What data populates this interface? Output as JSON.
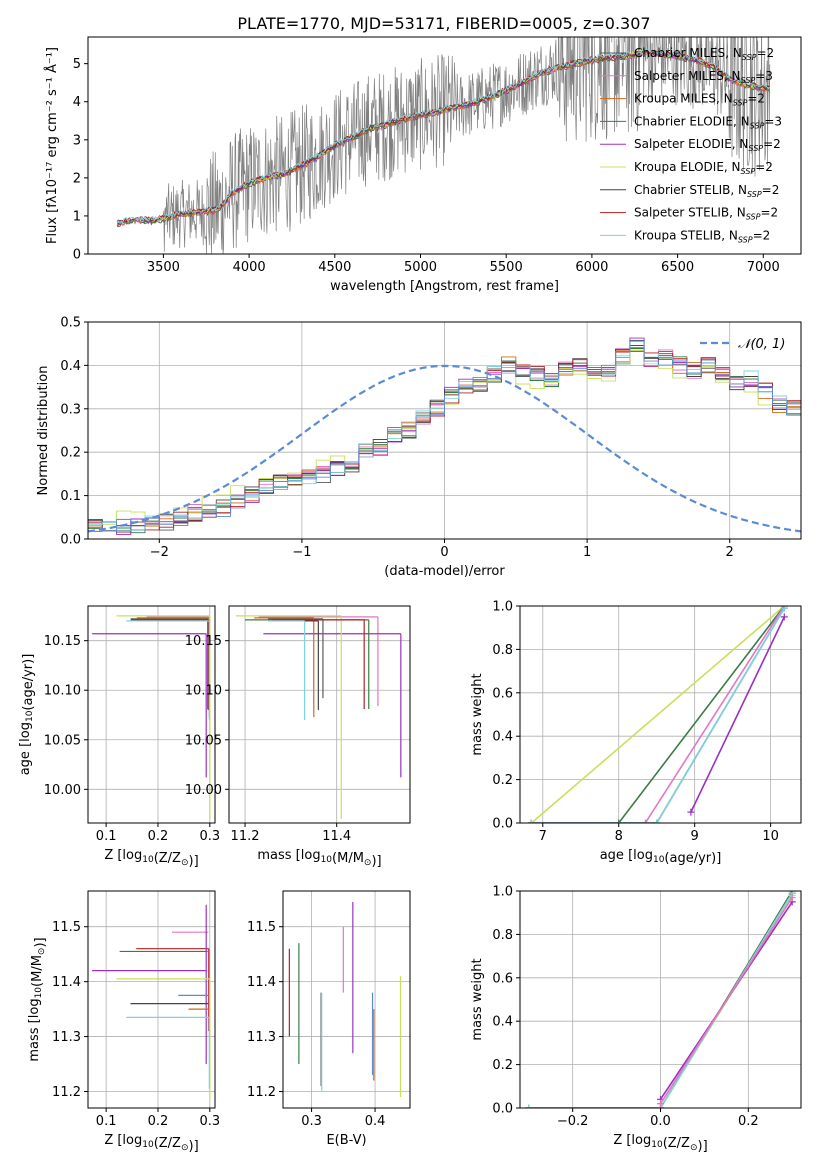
{
  "figure": {
    "title": "PLATE=1770, MJD=53171, FIBERID=0005, z=0.307",
    "colors": {
      "chabrier_miles": "#5b5b5b",
      "salpeter_miles": "#e377c2",
      "kroupa_miles": "#d2691e",
      "chabrier_elodie": "#3a7d44",
      "salpeter_elodie": "#9b30c0",
      "kroupa_elodie": "#c8e05a",
      "chabrier_stelib": "#444444",
      "salpeter_stelib": "#b22222",
      "kroupa_stelib": "#7fd3e0",
      "data": "#808080",
      "normal": "#5b8bd6",
      "grid": "#b0b0b0"
    }
  },
  "chart_data": [
    {
      "id": "spectrum",
      "type": "line",
      "xlabel": "wavelength [Angstrom, rest frame]",
      "xlim": [
        3060,
        7220
      ],
      "ylim": [
        0,
        5.7
      ],
      "xticks": [
        3500,
        4000,
        4500,
        5000,
        5500,
        6000,
        6500,
        7000
      ],
      "yticks": [
        0,
        1,
        2,
        3,
        4,
        5
      ],
      "grid": false,
      "legend_position": "upper-right",
      "legend": [
        {
          "label": "Chabrier MILES, N",
          "sub": "SSP",
          "suffix": "=2",
          "color_key": "chabrier_miles"
        },
        {
          "label": "Salpeter MILES, N",
          "sub": "SSP",
          "suffix": "=3",
          "color_key": "salpeter_miles"
        },
        {
          "label": "Kroupa MILES, N",
          "sub": "SSP",
          "suffix": "=2",
          "color_key": "kroupa_miles"
        },
        {
          "label": "Chabrier ELODIE, N",
          "sub": "SSP",
          "suffix": "=3",
          "color_key": "chabrier_elodie"
        },
        {
          "label": "Salpeter ELODIE, N",
          "sub": "SSP",
          "suffix": "=2",
          "color_key": "salpeter_elodie"
        },
        {
          "label": "Kroupa ELODIE, N",
          "sub": "SSP",
          "suffix": "=2",
          "color_key": "kroupa_elodie"
        },
        {
          "label": "Chabrier STELIB, N",
          "sub": "SSP",
          "suffix": "=2",
          "color_key": "chabrier_stelib"
        },
        {
          "label": "Salpeter STELIB, N",
          "sub": "SSP",
          "suffix": "=2",
          "color_key": "salpeter_stelib"
        },
        {
          "label": "Kroupa STELIB, N",
          "sub": "SSP",
          "suffix": "=2",
          "color_key": "kroupa_stelib"
        }
      ],
      "model_continuum": {
        "x": [
          3230,
          3280,
          3350,
          3450,
          3520,
          3600,
          3700,
          3800,
          3850,
          3900,
          4000,
          4100,
          4200,
          4300,
          4400,
          4500,
          4600,
          4700,
          4800,
          4900,
          5000,
          5100,
          5200,
          5300,
          5400,
          5500,
          5600,
          5700,
          5800,
          5900,
          6000,
          6100,
          6200,
          6300,
          6400,
          6500,
          6600,
          6700,
          6800,
          6900,
          7000,
          7040
        ],
        "y": [
          0.8,
          0.85,
          0.9,
          0.88,
          0.95,
          1.05,
          1.1,
          1.15,
          1.3,
          1.6,
          1.85,
          2.0,
          2.1,
          2.3,
          2.55,
          2.85,
          3.05,
          3.3,
          3.4,
          3.55,
          3.65,
          3.75,
          3.85,
          3.95,
          4.1,
          4.3,
          4.5,
          4.75,
          4.9,
          5.0,
          5.1,
          5.15,
          5.2,
          5.3,
          5.25,
          5.2,
          5.1,
          4.95,
          4.6,
          4.45,
          4.35,
          4.35
        ]
      }
    },
    {
      "id": "residuals",
      "type": "histogram",
      "xlabel": "(data-model)/error",
      "ylabel": "Normed distribution",
      "xlim": [
        -2.5,
        2.5
      ],
      "ylim": [
        0,
        0.5
      ],
      "xticks": [
        -2,
        -1,
        0,
        1,
        2
      ],
      "yticks": [
        0.0,
        0.1,
        0.2,
        0.3,
        0.4,
        0.5
      ],
      "grid": true,
      "legend_position": "upper-right",
      "legend": [
        {
          "label": "𝒩(0, 1)",
          "style": "dashed",
          "color_key": "normal"
        }
      ],
      "bin_width": 0.1,
      "bin_start": -2.5,
      "profile": [
        0.03,
        0.02,
        0.03,
        0.03,
        0.04,
        0.04,
        0.05,
        0.06,
        0.07,
        0.07,
        0.09,
        0.1,
        0.12,
        0.13,
        0.14,
        0.14,
        0.15,
        0.16,
        0.17,
        0.2,
        0.21,
        0.24,
        0.25,
        0.28,
        0.3,
        0.33,
        0.35,
        0.36,
        0.38,
        0.4,
        0.39,
        0.38,
        0.37,
        0.39,
        0.4,
        0.38,
        0.39,
        0.42,
        0.45,
        0.41,
        0.42,
        0.4,
        0.39,
        0.4,
        0.38,
        0.36,
        0.37,
        0.34,
        0.31,
        0.3,
        0.29,
        0.3,
        0.31,
        0.29,
        0.27,
        0.26,
        0.27,
        0.23,
        0.24,
        0.2,
        0.18,
        0.16,
        0.15,
        0.14,
        0.12,
        0.11,
        0.1,
        0.09,
        0.08,
        0.07,
        0.06,
        0.06,
        0.05,
        0.05,
        0.04,
        0.04,
        0.04,
        0.05,
        0.04,
        0.05
      ]
    },
    {
      "id": "age_vs_Z",
      "type": "errorbar",
      "xlabel": "Z [log",
      "xlabel_sub": "10",
      "xlabel_tail": "(Z/Z",
      "xlabel_end": ")]",
      "ylabel": "age  [log",
      "ylabel_sub": "10",
      "ylabel_tail": "(age/yr)]",
      "xlim": [
        0.065,
        0.31
      ],
      "ylim": [
        9.966,
        10.185
      ],
      "xticks": [
        0.1,
        0.2,
        0.3
      ],
      "yticks": [
        10.0,
        10.05,
        10.1,
        10.15
      ],
      "grid": true,
      "points": [
        {
          "color_key": "chabrier_miles",
          "x": 0.297,
          "y": 10.172,
          "xerr": [
            0.15,
            0.0
          ],
          "yerr": [
            0.08,
            0.0
          ]
        },
        {
          "color_key": "salpeter_miles",
          "x": 0.298,
          "y": 10.174,
          "xerr": [
            0.12,
            0.0
          ],
          "yerr": [
            0.09,
            0.0
          ]
        },
        {
          "color_key": "kroupa_miles",
          "x": 0.299,
          "y": 10.173,
          "xerr": [
            0.14,
            0.0
          ],
          "yerr": [
            0.1,
            0.0
          ]
        },
        {
          "color_key": "chabrier_elodie",
          "x": 0.296,
          "y": 10.171,
          "xerr": [
            0.14,
            0.0
          ],
          "yerr": [
            0.09,
            0.0
          ]
        },
        {
          "color_key": "salpeter_elodie",
          "x": 0.293,
          "y": 10.157,
          "xerr": [
            0.22,
            0.0
          ],
          "yerr": [
            0.145,
            0.0
          ]
        },
        {
          "color_key": "kroupa_elodie",
          "x": 0.3,
          "y": 10.175,
          "xerr": [
            0.18,
            0.0
          ],
          "yerr": [
            0.205,
            0.0
          ]
        },
        {
          "color_key": "chabrier_stelib",
          "x": 0.297,
          "y": 10.17,
          "xerr": [
            0.15,
            0.0
          ],
          "yerr": [
            0.09,
            0.0
          ]
        },
        {
          "color_key": "salpeter_stelib",
          "x": 0.298,
          "y": 10.171,
          "xerr": [
            0.15,
            0.0
          ],
          "yerr": [
            0.09,
            0.0
          ]
        },
        {
          "color_key": "kroupa_stelib",
          "x": 0.299,
          "y": 10.17,
          "xerr": [
            0.16,
            0.0
          ],
          "yerr": [
            0.1,
            0.0
          ]
        }
      ]
    },
    {
      "id": "age_vs_mass",
      "type": "errorbar",
      "xlabel": "mass [log",
      "xlabel_sub": "10",
      "xlabel_tail": "(M/M",
      "xlabel_end": ")]",
      "xlim": [
        11.165,
        11.56
      ],
      "ylim": [
        9.966,
        10.185
      ],
      "xticks": [
        11.2,
        11.4
      ],
      "yticks": [
        10.0,
        10.05,
        10.1,
        10.15
      ],
      "grid": true,
      "points": [
        {
          "color_key": "chabrier_miles",
          "x": 11.37,
          "y": 10.172,
          "xerr": [
            0.12,
            0.0
          ],
          "yerr": [
            0.08,
            0.0
          ]
        },
        {
          "color_key": "salpeter_miles",
          "x": 11.49,
          "y": 10.174,
          "xerr": [
            0.26,
            0.0
          ],
          "yerr": [
            0.09,
            0.0
          ]
        },
        {
          "color_key": "kroupa_miles",
          "x": 11.35,
          "y": 10.173,
          "xerr": [
            0.13,
            0.0
          ],
          "yerr": [
            0.1,
            0.0
          ]
        },
        {
          "color_key": "chabrier_elodie",
          "x": 11.47,
          "y": 10.171,
          "xerr": [
            0.27,
            0.0
          ],
          "yerr": [
            0.09,
            0.0
          ]
        },
        {
          "color_key": "salpeter_elodie",
          "x": 11.54,
          "y": 10.157,
          "xerr": [
            0.3,
            0.0
          ],
          "yerr": [
            0.145,
            0.0
          ]
        },
        {
          "color_key": "kroupa_elodie",
          "x": 11.41,
          "y": 10.175,
          "xerr": [
            0.23,
            0.0
          ],
          "yerr": [
            0.205,
            0.0
          ]
        },
        {
          "color_key": "chabrier_stelib",
          "x": 11.36,
          "y": 10.17,
          "xerr": [
            0.1,
            0.0
          ],
          "yerr": [
            0.09,
            0.0
          ]
        },
        {
          "color_key": "salpeter_stelib",
          "x": 11.46,
          "y": 10.171,
          "xerr": [
            0.2,
            0.0
          ],
          "yerr": [
            0.09,
            0.0
          ]
        },
        {
          "color_key": "kroupa_stelib",
          "x": 11.33,
          "y": 10.17,
          "xerr": [
            0.08,
            0.0
          ],
          "yerr": [
            0.1,
            0.0
          ]
        }
      ]
    },
    {
      "id": "massweight_vs_age",
      "type": "line",
      "xlabel": "age  [log",
      "xlabel_sub": "10",
      "xlabel_tail": "(age/yr)]",
      "ylabel": "mass weight",
      "xlim": [
        6.7,
        10.4
      ],
      "ylim": [
        0,
        1.0
      ],
      "xticks": [
        7,
        8,
        9,
        10
      ],
      "yticks": [
        0.0,
        0.2,
        0.4,
        0.6,
        0.8,
        1.0
      ],
      "grid": true,
      "series": [
        {
          "color_key": "kroupa_elodie",
          "x": [
            6.85,
            10.18
          ],
          "y": [
            0.0,
            1.0
          ]
        },
        {
          "color_key": "chabrier_elodie",
          "x": [
            6.85,
            8.0,
            10.18
          ],
          "y": [
            0.0,
            0.0,
            1.0
          ]
        },
        {
          "color_key": "salpeter_miles",
          "x": [
            6.85,
            8.35,
            10.18
          ],
          "y": [
            0.0,
            0.0,
            1.0
          ]
        },
        {
          "color_key": "chabrier_miles",
          "x": [
            6.85,
            8.5,
            10.18
          ],
          "y": [
            0.0,
            0.0,
            0.99
          ]
        },
        {
          "color_key": "kroupa_stelib",
          "x": [
            6.85,
            8.5,
            10.18
          ],
          "y": [
            0.0,
            0.0,
            0.99
          ]
        },
        {
          "color_key": "salpeter_elodie",
          "x": [
            8.95,
            10.18
          ],
          "y": [
            0.05,
            0.95
          ]
        }
      ]
    },
    {
      "id": "mass_vs_Z",
      "type": "errorbar",
      "xlabel": "Z [log",
      "xlabel_sub": "10",
      "xlabel_tail": "(Z/Z",
      "xlabel_end": ")]",
      "ylabel": "mass [log",
      "ylabel_sub": "10",
      "ylabel_tail": "(M/M",
      "ylabel_end": ")]",
      "xlim": [
        0.065,
        0.31
      ],
      "ylim": [
        11.17,
        11.565
      ],
      "xticks": [
        0.1,
        0.2,
        0.3
      ],
      "yticks": [
        11.2,
        11.3,
        11.4,
        11.5
      ],
      "grid": true,
      "points": [
        {
          "color_key": "salpeter_miles",
          "x": 0.297,
          "y": 11.49,
          "xerr": [
            0.07,
            0.0
          ],
          "yerr": [
            0.0,
            0.0
          ]
        },
        {
          "color_key": "salpeter_stelib",
          "x": 0.298,
          "y": 11.46,
          "xerr": [
            0.14,
            0.0
          ],
          "yerr": [
            0.15,
            0.0
          ]
        },
        {
          "color_key": "chabrier_elodie",
          "x": 0.296,
          "y": 11.455,
          "xerr": [
            0.17,
            0.0
          ],
          "yerr": [
            0.0,
            0.0
          ]
        },
        {
          "color_key": "salpeter_elodie",
          "x": 0.293,
          "y": 11.42,
          "xerr": [
            0.22,
            0.0
          ],
          "yerr": [
            0.17,
            0.12
          ]
        },
        {
          "color_key": "kroupa_elodie",
          "x": 0.3,
          "y": 11.405,
          "xerr": [
            0.18,
            0.0
          ],
          "yerr": [
            0.22,
            0.0
          ]
        },
        {
          "color_key": "kroupa_miles",
          "x": 0.299,
          "y": 11.35,
          "xerr": [
            0.04,
            0.0
          ],
          "yerr": [
            0.0,
            0.0
          ]
        },
        {
          "color_key": "chabrier_stelib",
          "x": 0.297,
          "y": 11.36,
          "xerr": [
            0.15,
            0.0
          ],
          "yerr": [
            0.0,
            0.0
          ]
        },
        {
          "color_key": "normal",
          "x": 0.299,
          "y": 11.375,
          "xerr": [
            0.06,
            0.0
          ],
          "yerr": [
            0.0,
            0.0
          ]
        },
        {
          "color_key": "kroupa_stelib",
          "x": 0.299,
          "y": 11.335,
          "xerr": [
            0.16,
            0.0
          ],
          "yerr": [
            0.13,
            0.0
          ]
        }
      ]
    },
    {
      "id": "mass_vs_ebv",
      "type": "errorbar",
      "xlabel": "E(B-V)",
      "xlim": [
        0.255,
        0.455
      ],
      "ylim": [
        11.17,
        11.565
      ],
      "xticks": [
        0.3,
        0.4
      ],
      "yticks": [
        11.2,
        11.3,
        11.4,
        11.5
      ],
      "grid": true,
      "points": [
        {
          "color_key": "salpeter_stelib",
          "x": 0.265,
          "y": 11.38,
          "xerr": [
            0.0,
            0.0
          ],
          "yerr": [
            0.08,
            0.08
          ]
        },
        {
          "color_key": "chabrier_elodie",
          "x": 0.28,
          "y": 11.36,
          "xerr": [
            0.0,
            0.0
          ],
          "yerr": [
            0.11,
            0.11
          ]
        },
        {
          "color_key": "chabrier_miles",
          "x": 0.315,
          "y": 11.29,
          "xerr": [
            0.0,
            0.0
          ],
          "yerr": [
            0.08,
            0.09
          ]
        },
        {
          "color_key": "kroupa_stelib",
          "x": 0.316,
          "y": 11.29,
          "xerr": [
            0.0,
            0.0
          ],
          "yerr": [
            0.09,
            0.09
          ]
        },
        {
          "color_key": "salpeter_miles",
          "x": 0.35,
          "y": 11.44,
          "xerr": [
            0.0,
            0.0
          ],
          "yerr": [
            0.06,
            0.06
          ]
        },
        {
          "color_key": "salpeter_elodie",
          "x": 0.365,
          "y": 11.39,
          "xerr": [
            0.0,
            0.0
          ],
          "yerr": [
            0.12,
            0.155
          ]
        },
        {
          "color_key": "kroupa_miles",
          "x": 0.398,
          "y": 11.28,
          "xerr": [
            0.0,
            0.0
          ],
          "yerr": [
            0.06,
            0.07
          ]
        },
        {
          "color_key": "normal",
          "x": 0.396,
          "y": 11.3,
          "xerr": [
            0.0,
            0.0
          ],
          "yerr": [
            0.07,
            0.08
          ]
        },
        {
          "color_key": "kroupa_elodie",
          "x": 0.44,
          "y": 11.3,
          "xerr": [
            0.0,
            0.0
          ],
          "yerr": [
            0.11,
            0.11
          ]
        }
      ]
    },
    {
      "id": "massweight_vs_Z",
      "type": "line",
      "xlabel": "Z [log",
      "xlabel_sub": "10",
      "xlabel_tail": "(Z/Z",
      "xlabel_end": ")]",
      "ylabel": "mass weight",
      "xlim": [
        -0.32,
        0.32
      ],
      "ylim": [
        0,
        1.0
      ],
      "xticks": [
        -0.2,
        0.0,
        0.2
      ],
      "yticks": [
        0.0,
        0.2,
        0.4,
        0.6,
        0.8,
        1.0
      ],
      "grid": true,
      "series": [
        {
          "color_key": "chabrier_miles",
          "x": [
            -0.3,
            0.0,
            0.3
          ],
          "y": [
            0.0,
            0.0,
            0.99
          ]
        },
        {
          "color_key": "chabrier_elodie",
          "x": [
            -0.3,
            0.0,
            0.3
          ],
          "y": [
            0.0,
            0.0,
            1.0
          ]
        },
        {
          "color_key": "kroupa_elodie",
          "x": [
            -0.3,
            0.0,
            0.3
          ],
          "y": [
            0.0,
            0.0,
            0.98
          ]
        },
        {
          "color_key": "kroupa_stelib",
          "x": [
            -0.3,
            0.0,
            0.3
          ],
          "y": [
            0.0,
            0.0,
            0.99
          ]
        },
        {
          "color_key": "salpeter_elodie",
          "x": [
            0.0,
            0.3
          ],
          "y": [
            0.04,
            0.95
          ]
        },
        {
          "color_key": "salpeter_miles",
          "x": [
            0.0,
            0.3
          ],
          "y": [
            0.02,
            0.97
          ]
        }
      ]
    }
  ]
}
